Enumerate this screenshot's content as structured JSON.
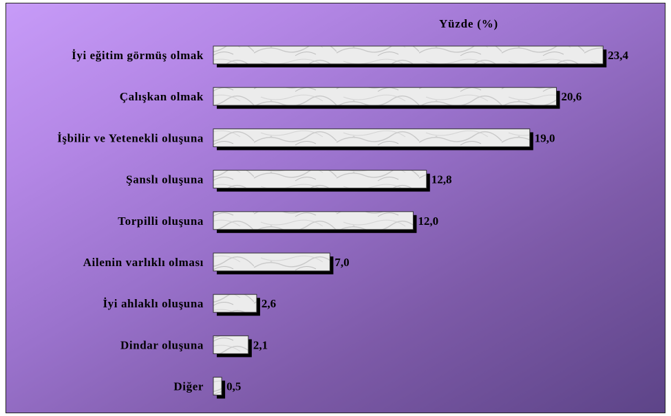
{
  "chart_data": {
    "type": "bar",
    "orientation": "horizontal",
    "title": "Yüzde (%)",
    "categories": [
      "İyi eğitim görmüş olmak",
      "Çalışkan olmak",
      "İşbilir ve Yetenekli oluşuna",
      "Şanslı oluşuna",
      "Torpilli oluşuna",
      "Ailenin varlıklı olması",
      "İyi ahlaklı oluşuna",
      "Dindar oluşuna",
      "Diğer"
    ],
    "values": [
      23.4,
      20.6,
      19.0,
      12.8,
      12.0,
      7.0,
      2.6,
      2.1,
      0.5
    ],
    "value_labels": [
      "23,4",
      "20,6",
      "19,0",
      "12,8",
      "12,0",
      "7,0",
      "2,6",
      "2,1",
      "0,5"
    ],
    "xlim": [
      0,
      25
    ],
    "grid": false,
    "legend": "none",
    "colors": {
      "background_top": "#c79bf8",
      "background_bottom": "#5d4488",
      "bar_fill": "#ececec",
      "bar_shadow": "#000000",
      "text": "#000000"
    }
  }
}
